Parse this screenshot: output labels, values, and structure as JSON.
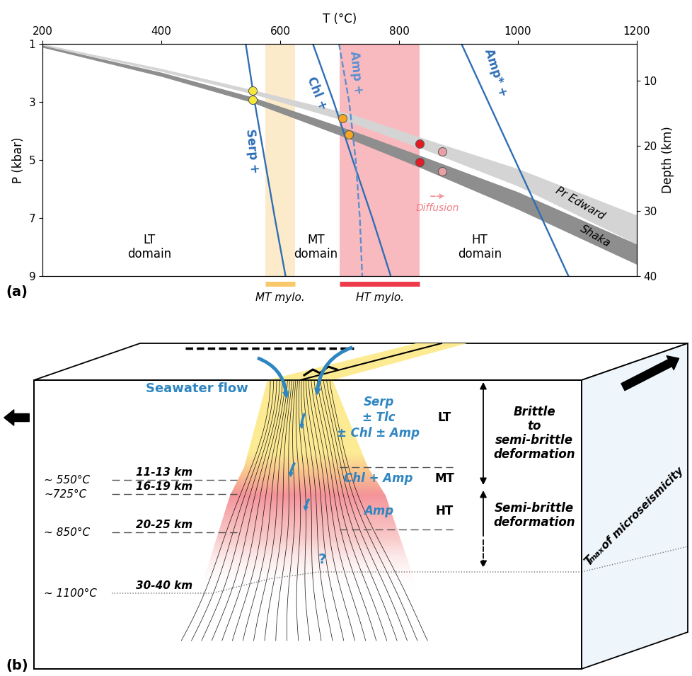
{
  "chart_data": {
    "type": "line",
    "x_label": "T (°C)",
    "y_label": "P (kbar)",
    "y2_label": "Depth (km)",
    "xlim": [
      200,
      1200
    ],
    "xticks": [
      200,
      400,
      600,
      800,
      1000,
      1200
    ],
    "ylim": [
      9,
      1
    ],
    "yticks": [
      1,
      3,
      5,
      7,
      9
    ],
    "y2lim": [
      40,
      4.4
    ],
    "y2ticks": [
      10,
      20,
      30,
      40
    ],
    "grid": false,
    "series": [
      {
        "name": "Serp +",
        "color": "#2f6eb5",
        "line_style": "solid",
        "x": [
          542,
          557,
          574,
          591,
          609
        ],
        "values": [
          1,
          3,
          5,
          7,
          9
        ]
      },
      {
        "name": "Chl +",
        "color": "#2f6eb5",
        "line_style": "solid",
        "x": [
          655,
          690,
          722,
          755,
          786
        ],
        "values": [
          1,
          3,
          5,
          7,
          9
        ]
      },
      {
        "name": "Amp +",
        "color": "#5b8fd0",
        "line_style": "dashed",
        "x": [
          699,
          716,
          727,
          734,
          738
        ],
        "values": [
          1,
          3,
          5,
          7,
          9
        ]
      },
      {
        "name": "Amp* +",
        "color": "#2f6eb5",
        "line_style": "solid",
        "x": [
          905,
          950,
          995,
          1040,
          1085
        ],
        "values": [
          1,
          3,
          5,
          7,
          9
        ]
      }
    ],
    "bands": [
      {
        "name": "Pr Edward",
        "color": "#d4d4d4",
        "x": [
          200,
          400,
          553,
          720,
          840,
          1000,
          1200
        ],
        "p_min": [
          1,
          1.85,
          2.58,
          3.42,
          4.25,
          5.3,
          6.9
        ],
        "p_max": [
          1.05,
          1.95,
          2.72,
          3.72,
          4.62,
          5.9,
          7.9
        ]
      },
      {
        "name": "Shaka",
        "color": "#8e8e8e",
        "x": [
          200,
          400,
          553,
          720,
          840,
          1000,
          1200
        ],
        "p_min": [
          1.05,
          1.98,
          2.83,
          3.98,
          4.88,
          6.1,
          7.9
        ],
        "p_max": [
          1.12,
          2.12,
          3.02,
          4.3,
          5.3,
          6.7,
          8.6
        ]
      }
    ],
    "markers": [
      {
        "color": "#f6e83a",
        "x": [
          553,
          553
        ],
        "values": [
          2.62,
          2.93
        ]
      },
      {
        "color": "#f5a623",
        "x": [
          705,
          716
        ],
        "values": [
          3.55,
          4.13
        ]
      },
      {
        "color": "#e41b23",
        "x": [
          835,
          835
        ],
        "values": [
          4.45,
          5.08
        ]
      },
      {
        "color": "#e8a0a4",
        "x": [
          873,
          873
        ],
        "values": [
          4.7,
          5.4
        ]
      }
    ],
    "regions": [
      {
        "label": "MT mylo.",
        "color": "#f9c86a",
        "x": [
          575,
          625
        ]
      },
      {
        "label": "HT mylo.",
        "color": "#ee3b4a",
        "x": [
          700,
          835
        ]
      }
    ],
    "annotations": {
      "panel": "(a)",
      "domains": [
        "LT\ndomain",
        "MT\ndomain",
        "HT\ndomain"
      ],
      "diffusion": {
        "label": "Diffusion",
        "x": [
          850,
          880
        ],
        "value": 6.25
      }
    }
  },
  "diagram": {
    "panel": "(b)",
    "flow": "Seawater flow",
    "isotherms": [
      {
        "temperature": "~ 550°C",
        "depth": "11-13 km"
      },
      {
        "temperature": "~725°C",
        "depth": "16-19 km"
      },
      {
        "temperature": "~ 850°C",
        "depth": "20-25 km"
      },
      {
        "temperature": "~ 1100°C",
        "depth": "30-40 km"
      }
    ],
    "zones": [
      {
        "name": "LT",
        "minerals": [
          "Serp",
          "± Tlc",
          "± Chl ± Amp"
        ]
      },
      {
        "name": "MT",
        "minerals": [
          "Chl + Amp"
        ]
      },
      {
        "name": "HT",
        "minerals": [
          "Amp"
        ]
      }
    ],
    "deformation": [
      "Brittle\nto\nsemi-brittle\ndeformation",
      "Semi-brittle\ndeformation"
    ],
    "unknown": "?",
    "microseismicity": {
      "symbol": "T",
      "subscript": "max",
      "text": "of microseismicity"
    }
  }
}
